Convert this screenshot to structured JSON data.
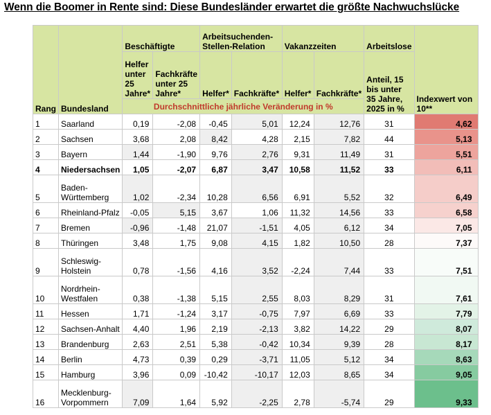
{
  "title": "Wenn die Boomer in Rente sind: Diese Bundesländer erwartet die größte Nachwuchslücke",
  "headers": {
    "rang": "Rang",
    "bundesland": "Bundesland",
    "group_beschaeftigte": "Beschäftigte",
    "group_relation": "Arbeitsuchenden-Stellen-Relation",
    "group_vakanz": "Vakanzzeiten",
    "group_arbeitslose": "Arbeitslose",
    "helfer_u25": "Helfer unter 25 Jahre*",
    "fachkraefte_u25": "Fachkräfte unter 25 Jahre*",
    "helfer": "Helfer*",
    "fachkraefte": "Fachkräfte*",
    "vak_helfer": "Helfer*",
    "vak_fachkraefte": "Fachkräfte*",
    "anteil": "Anteil, 15 bis unter 35 Jahre, 2025 in %",
    "index": "Indexwert von 10**",
    "subheader": "Durchschnittliche jährliche Veränderung in %"
  },
  "rows": [
    {
      "rang": "1",
      "land": "Saarland",
      "c1": "0,19",
      "c2": "-2,08",
      "c3": "-0,45",
      "c4": "5,01",
      "c5": "12,24",
      "c6": "12,76",
      "c7": "31",
      "idx": "4,62",
      "color": "#e07a72"
    },
    {
      "rang": "2",
      "land": "Sachsen",
      "c1": "3,68",
      "c2": "2,08",
      "c3": "8,42",
      "c4": "4,28",
      "c5": "2,15",
      "c6": "7,82",
      "c7": "44",
      "idx": "5,13",
      "color": "#e9938b"
    },
    {
      "rang": "3",
      "land": "Bayern",
      "c1": "1,44",
      "c2": "-1,90",
      "c3": "9,76",
      "c4": "2,76",
      "c5": "9,31",
      "c6": "11,49",
      "c7": "31",
      "idx": "5,51",
      "color": "#eda49d"
    },
    {
      "rang": "4",
      "land": "Niedersachsen",
      "c1": "1,05",
      "c2": "-2,07",
      "c3": "6,87",
      "c4": "3,47",
      "c5": "10,58",
      "c6": "11,52",
      "c7": "33",
      "idx": "6,11",
      "color": "#f2bdb8",
      "bold": true
    },
    {
      "rang": "5",
      "land": "Baden-Württemberg",
      "c1": "1,02",
      "c2": "-2,34",
      "c3": "10,28",
      "c4": "6,56",
      "c5": "6,91",
      "c6": "5,52",
      "c7": "32",
      "idx": "6,49",
      "color": "#f5cdc9"
    },
    {
      "rang": "6",
      "land": "Rheinland-Pfalz",
      "c1": "-0,05",
      "c2": "5,15",
      "c3": "3,67",
      "c4": "1,06",
      "c5": "11,32",
      "c6": "14,56",
      "c7": "33",
      "idx": "6,58",
      "color": "#f6d1cd"
    },
    {
      "rang": "7",
      "land": "Bremen",
      "c1": "-0,96",
      "c2": "-1,48",
      "c3": "21,07",
      "c4": "-1,51",
      "c5": "4,05",
      "c6": "6,12",
      "c7": "34",
      "idx": "7,05",
      "color": "#fbe8e6"
    },
    {
      "rang": "8",
      "land": "Thüringen",
      "c1": "3,48",
      "c2": "1,75",
      "c3": "9,08",
      "c4": "4,15",
      "c5": "1,82",
      "c6": "10,50",
      "c7": "28",
      "idx": "7,37",
      "color": "#fdfaf9"
    },
    {
      "rang": "9",
      "land": "Schleswig-Holstein",
      "c1": "0,78",
      "c2": "-1,56",
      "c3": "4,16",
      "c4": "3,52",
      "c5": "-2,24",
      "c6": "7,44",
      "c7": "33",
      "idx": "7,51",
      "color": "#f8fcf9"
    },
    {
      "rang": "10",
      "land": "Nordrhein-Westfalen",
      "c1": "0,38",
      "c2": "-1,38",
      "c3": "5,15",
      "c4": "2,55",
      "c5": "8,03",
      "c6": "8,29",
      "c7": "31",
      "idx": "7,61",
      "color": "#f1f9f3"
    },
    {
      "rang": "11",
      "land": "Hessen",
      "c1": "1,71",
      "c2": "-1,24",
      "c3": "3,17",
      "c4": "-0,75",
      "c5": "7,97",
      "c6": "6,69",
      "c7": "33",
      "idx": "7,79",
      "color": "#e3f3e7"
    },
    {
      "rang": "12",
      "land": "Sachsen-Anhalt",
      "c1": "4,40",
      "c2": "1,96",
      "c3": "2,19",
      "c4": "-2,13",
      "c5": "3,82",
      "c6": "14,22",
      "c7": "29",
      "idx": "8,07",
      "color": "#cfeadb"
    },
    {
      "rang": "13",
      "land": "Brandenburg",
      "c1": "2,63",
      "c2": "2,51",
      "c3": "5,38",
      "c4": "-0,42",
      "c5": "10,34",
      "c6": "9,39",
      "c7": "28",
      "idx": "8,17",
      "color": "#c8e7d3"
    },
    {
      "rang": "14",
      "land": "Berlin",
      "c1": "4,73",
      "c2": "0,39",
      "c3": "0,29",
      "c4": "-3,71",
      "c5": "11,05",
      "c6": "5,12",
      "c7": "34",
      "idx": "8,63",
      "color": "#a6d9ba"
    },
    {
      "rang": "15",
      "land": "Hamburg",
      "c1": "3,96",
      "c2": "0,09",
      "c3": "-10,42",
      "c4": "-10,17",
      "c5": "12,03",
      "c6": "8,65",
      "c7": "34",
      "idx": "9,05",
      "color": "#86cba0"
    },
    {
      "rang": "16",
      "land": "Mecklenburg-Vorpommern",
      "c1": "7,09",
      "c2": "1,64",
      "c3": "5,92",
      "c4": "-2,25",
      "c5": "2,78",
      "c6": "-5,74",
      "c7": "29",
      "idx": "9,33",
      "color": "#6cbf8c"
    }
  ],
  "shading": {
    "0": [
      4,
      6
    ],
    "1": [
      3,
      6
    ],
    "2": [
      1,
      4,
      6
    ],
    "3": [
      4,
      6
    ],
    "4": [
      1,
      4,
      6
    ],
    "5": [
      2,
      6
    ],
    "6": [
      1,
      4,
      6
    ],
    "7": [
      4,
      6
    ],
    "8": [
      4,
      6
    ],
    "9": [
      4,
      6
    ],
    "10": [
      4,
      6
    ],
    "11": [
      4,
      6
    ],
    "12": [
      4,
      6
    ],
    "13": [
      4,
      6
    ],
    "14": [
      4,
      6
    ],
    "15": [
      1,
      4,
      6
    ]
  }
}
